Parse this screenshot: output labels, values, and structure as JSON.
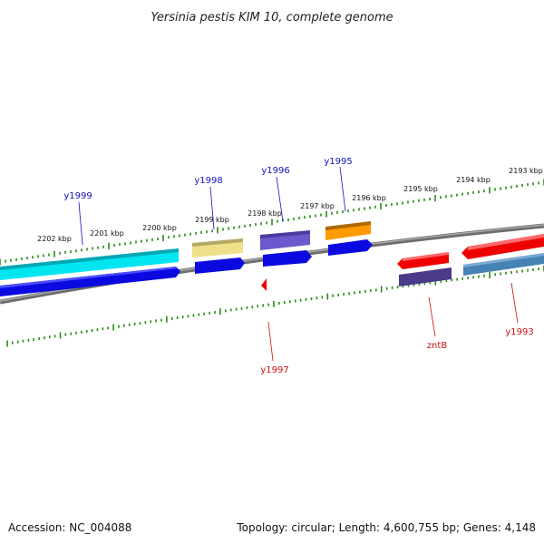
{
  "title": "Yersinia pestis KIM 10, complete genome",
  "footer": {
    "accession": "Accession: NC_004088",
    "summary": "Topology: circular; Length: 4,600,755 bp; Genes: 4,148"
  },
  "colors": {
    "backbone": "#7a7a7a",
    "ruler": "#2a8a1a",
    "label_forward": "#1010c0",
    "label_reverse": "#cc1010"
  },
  "kbp_labels": [
    "2202 kbp",
    "2201 kbp",
    "2200 kbp",
    "2199 kbp",
    "2198 kbp",
    "2197 kbp",
    "2196 kbp",
    "2195 kbp",
    "2194 kbp",
    "2193 kbp"
  ],
  "gene_labels": [
    {
      "name": "y1999",
      "strand": "forward"
    },
    {
      "name": "y1998",
      "strand": "forward"
    },
    {
      "name": "y1996",
      "strand": "forward"
    },
    {
      "name": "y1995",
      "strand": "forward"
    },
    {
      "name": "y1997",
      "strand": "reverse"
    },
    {
      "name": "zntB",
      "strand": "reverse"
    },
    {
      "name": "y1993",
      "strand": "reverse"
    }
  ],
  "features": [
    {
      "name": "y1999-gene",
      "color": "#00e5f0",
      "strand": "forward"
    },
    {
      "name": "y1999-cds",
      "color": "#0a0ae0",
      "strand": "forward"
    },
    {
      "name": "y1998-gene",
      "color": "#efe08a",
      "strand": "forward"
    },
    {
      "name": "y1998-cds",
      "color": "#0a0ae0",
      "strand": "forward"
    },
    {
      "name": "y1996-gene",
      "color": "#6a5acd",
      "strand": "forward"
    },
    {
      "name": "y1996-cds",
      "color": "#0a0ae0",
      "strand": "forward"
    },
    {
      "name": "y1995-gene",
      "color": "#ff9a00",
      "strand": "forward"
    },
    {
      "name": "y1995-cds",
      "color": "#0a0ae0",
      "strand": "forward"
    },
    {
      "name": "y1997-gene",
      "color": "#ee0000",
      "strand": "reverse"
    },
    {
      "name": "zntB-gene",
      "color": "#ee0000",
      "strand": "reverse"
    },
    {
      "name": "zntB-cds",
      "color": "#4b3a8a",
      "strand": "reverse"
    },
    {
      "name": "y1993-gene",
      "color": "#ee0000",
      "strand": "reverse"
    },
    {
      "name": "y1993-cds",
      "color": "#4682b4",
      "strand": "reverse"
    }
  ]
}
